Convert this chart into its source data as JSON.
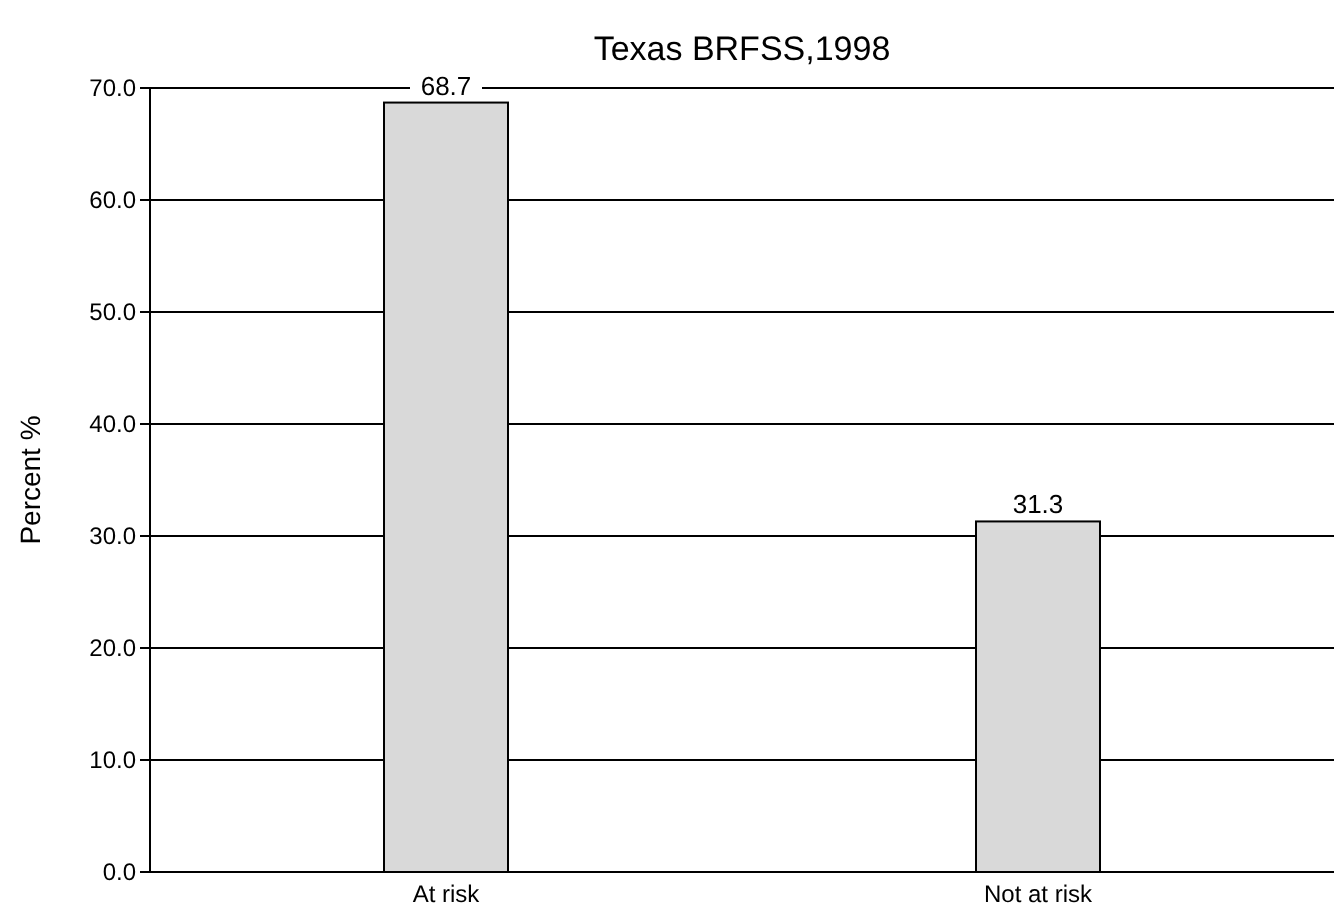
{
  "chart_data": {
    "type": "bar",
    "title": "Texas BRFSS,1998",
    "ylabel": "Percent %",
    "categories": [
      "At risk",
      "Not at risk"
    ],
    "values": [
      68.7,
      31.3
    ],
    "value_labels": [
      "68.7",
      "31.3"
    ],
    "color": "#d9d9d9",
    "ylim": [
      0,
      70
    ],
    "yticks": [
      {
        "value": 0,
        "label": "0.0"
      },
      {
        "value": 10,
        "label": "10.0"
      },
      {
        "value": 20,
        "label": "20.0"
      },
      {
        "value": 30,
        "label": "30.0"
      },
      {
        "value": 40,
        "label": "40.0"
      },
      {
        "value": 50,
        "label": "50.0"
      },
      {
        "value": 60,
        "label": "60.0"
      },
      {
        "value": 70,
        "label": "70.0"
      }
    ],
    "grid": "y"
  }
}
